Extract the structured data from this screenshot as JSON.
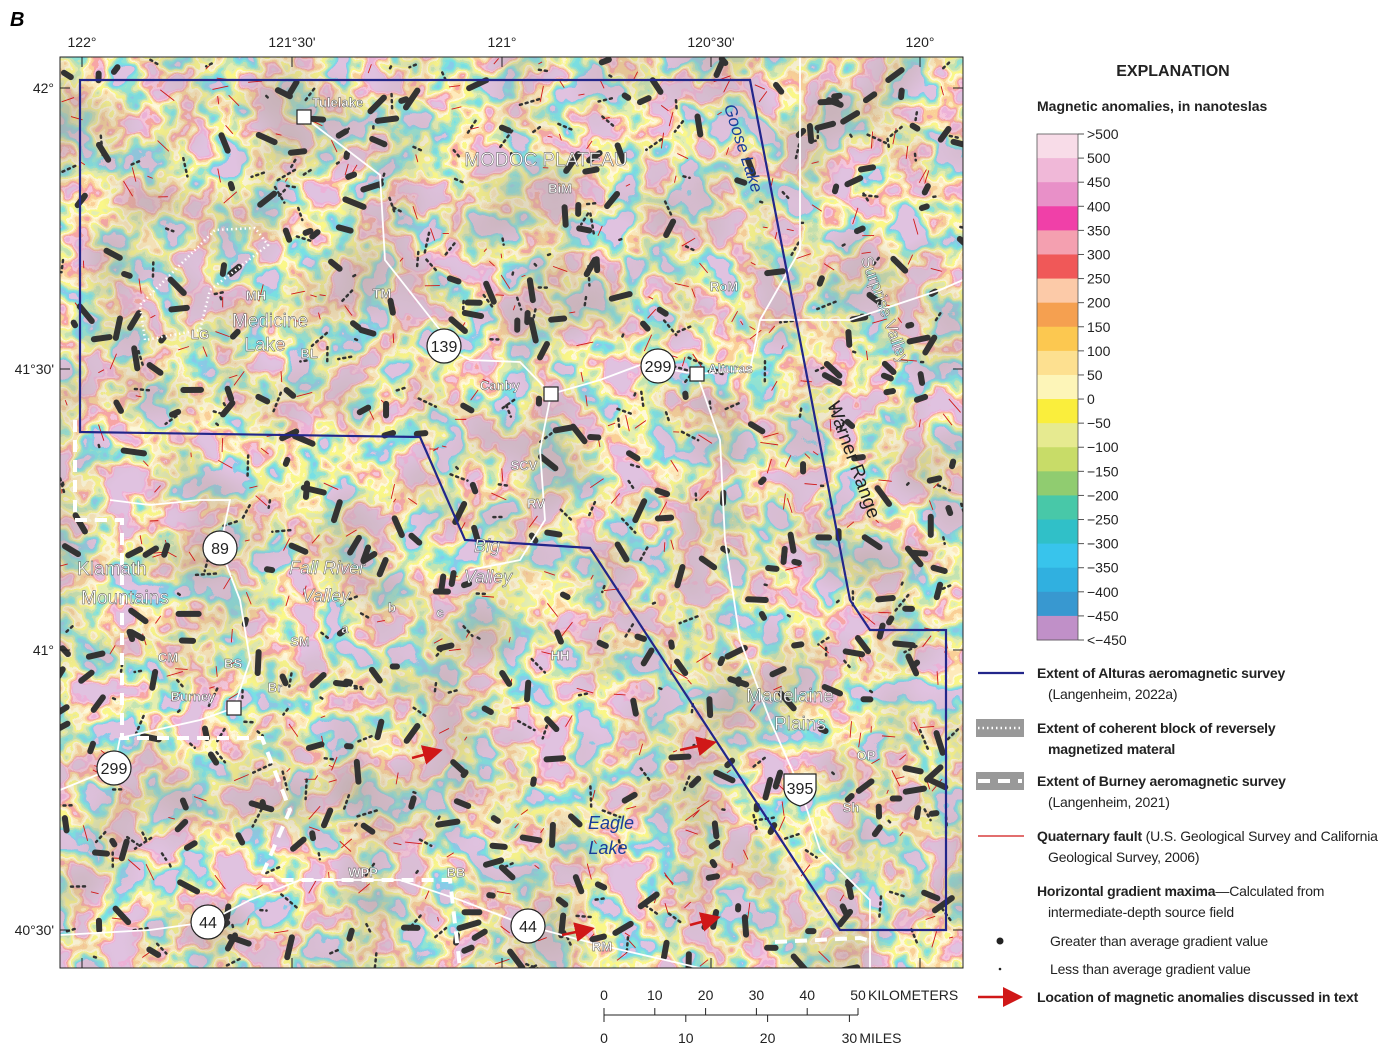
{
  "panel_label": "B",
  "map": {
    "longitudes": [
      "122°",
      "121°30'",
      "121°",
      "120°30'",
      "120°"
    ],
    "latitudes": [
      "42°",
      "41°30'",
      "41°",
      "40°30'"
    ],
    "labels": [
      "Tulelake",
      "MODOC PLATEAU",
      "BiM",
      "Goose Lake",
      "Surprise Valley",
      "MH",
      "Medicine",
      "Lake",
      "TM",
      "RoM",
      "LG",
      "BL",
      "Alturas",
      "Canby",
      "Warner Range",
      "SCV",
      "RV",
      "Big",
      "Valley",
      "Klamath",
      "Mountains",
      "Fall River",
      "Valley",
      "b",
      "c",
      "a",
      "SM",
      "HH",
      "CM",
      "BS",
      "Burney",
      "Br",
      "Madelaine",
      "Plains",
      "OP",
      "Sh",
      "Eagle",
      "Lake",
      "WPP",
      "BB",
      "RM"
    ],
    "routes": [
      "139",
      "299",
      "89",
      "299",
      "395",
      "44",
      "44"
    ],
    "scale": {
      "km": {
        "ticks": [
          0,
          10,
          20,
          30,
          40,
          50
        ],
        "unit": "KILOMETERS"
      },
      "miles": {
        "ticks": [
          0,
          10,
          20,
          30
        ],
        "unit": "MILES"
      }
    }
  },
  "legend": {
    "title": "EXPLANATION",
    "colorbar": {
      "title": "Magnetic anomalies, in nanoteslas",
      "labels": [
        ">500",
        "500",
        "450",
        "400",
        "350",
        "300",
        "250",
        "200",
        "150",
        "100",
        "50",
        "0",
        "−50",
        "−100",
        "−150",
        "−200",
        "−250",
        "−300",
        "−350",
        "−400",
        "−450",
        "<−450"
      ],
      "colors": [
        "#f8dce8",
        "#f0b8d8",
        "#e890c8",
        "#f040a8",
        "#f4a0b0",
        "#f05858",
        "#fccaa8",
        "#f5a050",
        "#fcc850",
        "#fde090",
        "#fdf5b8",
        "#faee3c",
        "#e6ea90",
        "#c8dc68",
        "#90cc70",
        "#48c8a8",
        "#30c0c8",
        "#38c4ec",
        "#30b0e0",
        "#3898d0",
        "#c090c8"
      ]
    },
    "items": [
      {
        "label": "Extent of Alturas aeromagnetic survey",
        "note": "(Langenheim, 2022a)"
      },
      {
        "label": "Extent of coherent block of reversely magnetized materal"
      },
      {
        "label": "Extent of Burney aeromagnetic survey",
        "note": "(Langenheim, 2021)"
      },
      {
        "label": "Quaternary fault",
        "note": "(U.S. Geological Survey and California Geological Survey, 2006)"
      },
      {
        "label": "Horizontal gradient maxima",
        "note": "—Calculated from intermediate-depth source field"
      },
      {
        "label": "Greater than average gradient value"
      },
      {
        "label": "Less than average gradient value"
      },
      {
        "label": "Location of magnetic anomalies discussed in text"
      }
    ]
  }
}
